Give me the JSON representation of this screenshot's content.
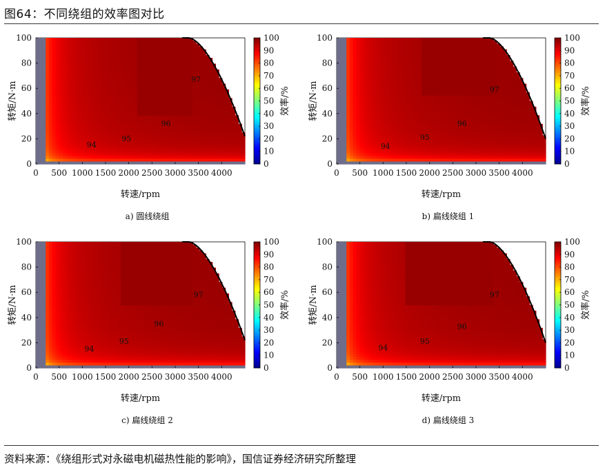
{
  "figure": {
    "title": "图64：不同绕组的效率图对比",
    "source": "资料来源：《绕组形式对永磁电机磁热性能的影响》，国信证券经济研究所整理"
  },
  "colors": {
    "jet": [
      "#00008f",
      "#0000ff",
      "#007fff",
      "#00ffff",
      "#7fff7f",
      "#ffff00",
      "#ff7f00",
      "#ff0000",
      "#7f0000"
    ],
    "invalid_region": "#6e6e8a",
    "boundary": "#000000"
  },
  "chart_data": [
    {
      "type": "heatmap",
      "subtype": "efficiency-contour-map",
      "caption": "a)  圆线绕组",
      "xlabel": "转速/rpm",
      "ylabel": "转矩/N·m",
      "colorbar_label": "效率/%",
      "xlim": [
        0,
        4500
      ],
      "ylim": [
        0,
        100
      ],
      "xticks": [
        0,
        500,
        1000,
        1500,
        2000,
        2500,
        3000,
        3500,
        4000
      ],
      "yticks": [
        0,
        20,
        40,
        60,
        80,
        100
      ],
      "colorbar_ticks": [
        0,
        10,
        20,
        30,
        40,
        50,
        60,
        70,
        80,
        90,
        100
      ],
      "colorbar_range": [
        0,
        100
      ],
      "torque_limit": {
        "base_speed": 3300,
        "max_speed": 4500,
        "min_torque": 22
      },
      "peak_region": {
        "x": [
          2200,
          3400
        ],
        "y": [
          38,
          100
        ]
      },
      "contours": [
        {
          "label": "94",
          "x": 1200,
          "y": 13
        },
        {
          "label": "95",
          "x": 1950,
          "y": 18
        },
        {
          "label": "96",
          "x": 2800,
          "y": 30
        },
        {
          "label": "97",
          "x": 3450,
          "y": 65
        }
      ]
    },
    {
      "type": "heatmap",
      "subtype": "efficiency-contour-map",
      "caption": "b)  扁线绕组 1",
      "xlabel": "转速/rpm",
      "ylabel": "转矩/N·m",
      "colorbar_label": "效率/%",
      "xlim": [
        0,
        4500
      ],
      "ylim": [
        0,
        100
      ],
      "xticks": [
        0,
        500,
        1000,
        1500,
        2000,
        2500,
        3000,
        3500,
        4000
      ],
      "yticks": [
        0,
        20,
        40,
        60,
        80,
        100
      ],
      "colorbar_ticks": [
        0,
        10,
        20,
        30,
        40,
        50,
        60,
        70,
        80,
        90,
        100
      ],
      "colorbar_range": [
        0,
        100
      ],
      "torque_limit": {
        "base_speed": 3300,
        "max_speed": 4500,
        "min_torque": 20
      },
      "peak_region": {
        "x": [
          1850,
          3450
        ],
        "y": [
          55,
          100
        ]
      },
      "contours": [
        {
          "label": "94",
          "x": 1050,
          "y": 12
        },
        {
          "label": "95",
          "x": 1900,
          "y": 19
        },
        {
          "label": "96",
          "x": 2700,
          "y": 30
        },
        {
          "label": "97",
          "x": 3400,
          "y": 57
        }
      ]
    },
    {
      "type": "heatmap",
      "subtype": "efficiency-contour-map",
      "caption": "c)  扁线绕组 2",
      "xlabel": "转速/rpm",
      "ylabel": "转矩/N·m",
      "colorbar_label": "效率/%",
      "xlim": [
        0,
        4500
      ],
      "ylim": [
        0,
        100
      ],
      "xticks": [
        0,
        500,
        1000,
        1500,
        2000,
        2500,
        3000,
        3500,
        4000
      ],
      "yticks": [
        0,
        20,
        40,
        60,
        80,
        100
      ],
      "colorbar_ticks": [
        0,
        10,
        20,
        30,
        40,
        50,
        60,
        70,
        80,
        90,
        100
      ],
      "colorbar_range": [
        0,
        100
      ],
      "torque_limit": {
        "base_speed": 3300,
        "max_speed": 4500,
        "min_torque": 22
      },
      "peak_region": {
        "x": [
          1800,
          3400
        ],
        "y": [
          50,
          100
        ]
      },
      "contours": [
        {
          "label": "94",
          "x": 1150,
          "y": 13
        },
        {
          "label": "95",
          "x": 1900,
          "y": 19
        },
        {
          "label": "96",
          "x": 2650,
          "y": 33
        },
        {
          "label": "97",
          "x": 3500,
          "y": 56
        }
      ]
    },
    {
      "type": "heatmap",
      "subtype": "efficiency-contour-map",
      "caption": "d)  扁线绕组 3",
      "xlabel": "转速/rpm",
      "ylabel": "转矩/N·m",
      "colorbar_label": "效率/%",
      "xlim": [
        0,
        4500
      ],
      "ylim": [
        0,
        100
      ],
      "xticks": [
        0,
        500,
        1000,
        1500,
        2000,
        2500,
        3000,
        3500,
        4000
      ],
      "yticks": [
        0,
        20,
        40,
        60,
        80,
        100
      ],
      "colorbar_ticks": [
        0,
        10,
        20,
        30,
        40,
        50,
        60,
        70,
        80,
        90,
        100
      ],
      "colorbar_range": [
        0,
        100
      ],
      "torque_limit": {
        "base_speed": 3300,
        "max_speed": 4500,
        "min_torque": 20
      },
      "peak_region": {
        "x": [
          1500,
          3400
        ],
        "y": [
          50,
          100
        ]
      },
      "contours": [
        {
          "label": "94",
          "x": 1000,
          "y": 14
        },
        {
          "label": "95",
          "x": 1900,
          "y": 19
        },
        {
          "label": "96",
          "x": 2700,
          "y": 31
        },
        {
          "label": "97",
          "x": 3400,
          "y": 56
        }
      ]
    }
  ]
}
